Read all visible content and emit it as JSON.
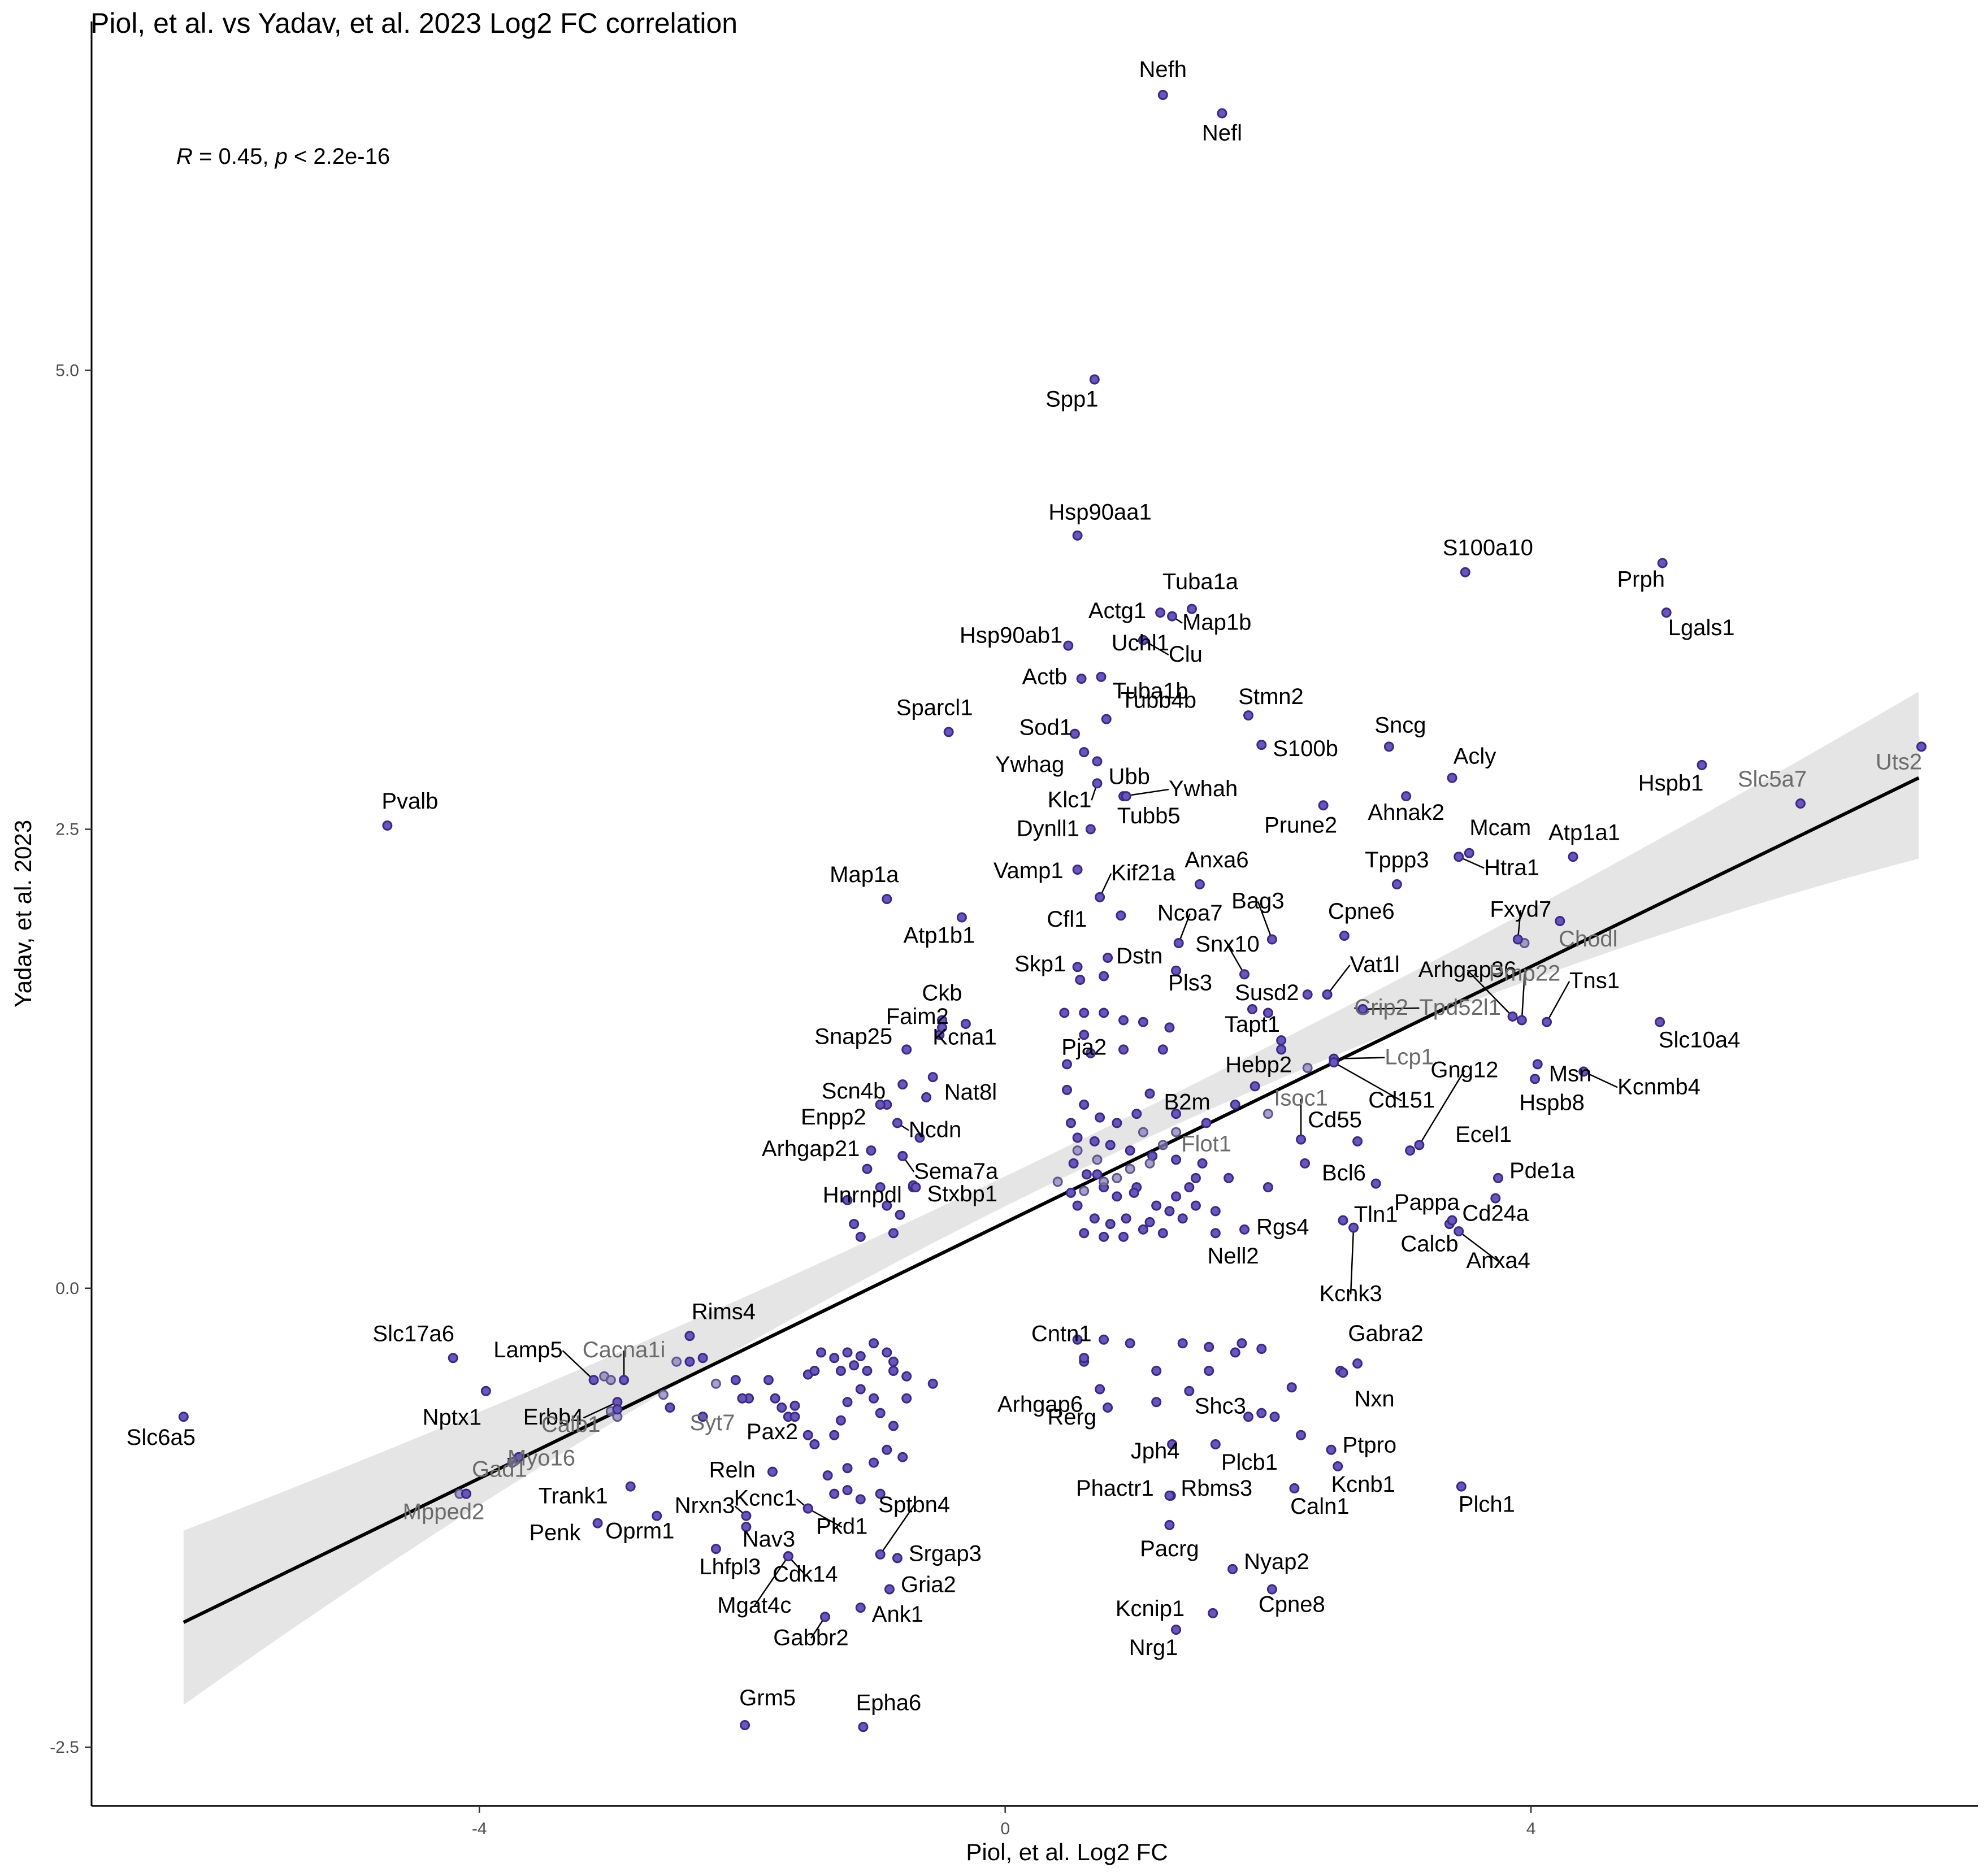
{
  "chart_data": {
    "type": "scatter",
    "title": "Piol, et al. vs Yadav, et al. 2023 Log2 FC correlation",
    "xlabel": "Piol, et al. Log2 FC",
    "ylabel": "Yadav, et al. 2023",
    "xlim": [
      -6.95,
      7.4
    ],
    "ylim": [
      -2.82,
      6.9
    ],
    "x_ticks": [
      -4,
      0,
      4
    ],
    "x_tick_labels": [
      "-4",
      "0",
      "4"
    ],
    "y_ticks": [
      -2.5,
      0,
      2.5,
      5
    ],
    "y_tick_labels": [
      "-2.5",
      "0.0",
      "2.5",
      "5.0"
    ],
    "stat_annotation": {
      "r_symbol": "R",
      "r_text": " = 0.45, ",
      "p_symbol": "p",
      "p_text": " < 2.2e-16"
    },
    "colors": {
      "point_fill": "#6a55b8",
      "point_stroke": "#3a2a88",
      "regression_line": "#000000",
      "confidence_band": "#bebebe"
    },
    "regression": {
      "x": [
        -6.25,
        6.95
      ],
      "y": [
        -1.82,
        2.78
      ],
      "band_upper": [
        -1.32,
        3.25
      ],
      "band_lower": [
        -2.27,
        2.34
      ],
      "band_mid_upper": 0.73,
      "band_mid_lower": 0.57
    },
    "labeled_points": [
      {
        "name": "Nefh",
        "x": 1.2,
        "y": 6.5
      },
      {
        "name": "Nefl",
        "x": 1.65,
        "y": 6.4
      },
      {
        "name": "Spp1",
        "x": 0.68,
        "y": 4.95
      },
      {
        "name": "Hsp90aa1",
        "x": 0.55,
        "y": 4.1
      },
      {
        "name": "S100a10",
        "x": 3.5,
        "y": 3.9
      },
      {
        "name": "Prph",
        "x": 5.0,
        "y": 3.95
      },
      {
        "name": "Tuba1a",
        "x": 1.42,
        "y": 3.7
      },
      {
        "name": "Lgals1",
        "x": 5.03,
        "y": 3.68
      },
      {
        "name": "Actg1",
        "x": 1.18,
        "y": 3.68
      },
      {
        "name": "Map1b",
        "x": 1.27,
        "y": 3.66
      },
      {
        "name": "Hsp90ab1",
        "x": 0.48,
        "y": 3.5
      },
      {
        "name": "Uchl1",
        "x": 1.05,
        "y": 3.53
      },
      {
        "name": "Clu",
        "x": 1.05,
        "y": 3.53
      },
      {
        "name": "Actb",
        "x": 0.58,
        "y": 3.32
      },
      {
        "name": "Tuba1b",
        "x": 0.73,
        "y": 3.33
      },
      {
        "name": "Stmn2",
        "x": 1.85,
        "y": 3.12
      },
      {
        "name": "Sparcl1",
        "x": -0.43,
        "y": 3.03
      },
      {
        "name": "Sod1",
        "x": 0.53,
        "y": 3.02
      },
      {
        "name": "Tubb4b",
        "x": 0.77,
        "y": 3.1
      },
      {
        "name": "S100b",
        "x": 1.95,
        "y": 2.96
      },
      {
        "name": "Sncg",
        "x": 2.92,
        "y": 2.95
      },
      {
        "name": "Uts2",
        "x": 6.97,
        "y": 2.95
      },
      {
        "name": "Ywhag",
        "x": 0.6,
        "y": 2.92
      },
      {
        "name": "Ubb",
        "x": 0.7,
        "y": 2.87
      },
      {
        "name": "Acly",
        "x": 3.4,
        "y": 2.78
      },
      {
        "name": "Hspb1",
        "x": 5.3,
        "y": 2.85
      },
      {
        "name": "Klc1",
        "x": 0.7,
        "y": 2.75
      },
      {
        "name": "Ywhah",
        "x": 0.9,
        "y": 2.68
      },
      {
        "name": "Slc5a7",
        "x": 6.05,
        "y": 2.64
      },
      {
        "name": "Pvalb",
        "x": -4.7,
        "y": 2.52
      },
      {
        "name": "Tubb5",
        "x": 0.92,
        "y": 2.68
      },
      {
        "name": "Prune2",
        "x": 2.42,
        "y": 2.63
      },
      {
        "name": "Ahnak2",
        "x": 3.05,
        "y": 2.68
      },
      {
        "name": "Dynll1",
        "x": 0.65,
        "y": 2.5
      },
      {
        "name": "Mcam",
        "x": 3.53,
        "y": 2.37
      },
      {
        "name": "Atp1a1",
        "x": 4.32,
        "y": 2.35
      },
      {
        "name": "Tppp3",
        "x": 2.98,
        "y": 2.2
      },
      {
        "name": "Htra1",
        "x": 3.45,
        "y": 2.35
      },
      {
        "name": "Anxa6",
        "x": 1.48,
        "y": 2.2
      },
      {
        "name": "Kif21a",
        "x": 0.72,
        "y": 2.13
      },
      {
        "name": "Vamp1",
        "x": 0.55,
        "y": 2.28
      },
      {
        "name": "Map1a",
        "x": -0.9,
        "y": 2.12
      },
      {
        "name": "Fxyd7",
        "x": 3.9,
        "y": 1.9
      },
      {
        "name": "Cfl1",
        "x": 0.88,
        "y": 2.03
      },
      {
        "name": "Ncoa7",
        "x": 1.32,
        "y": 1.88
      },
      {
        "name": "Bag3",
        "x": 2.03,
        "y": 1.9
      },
      {
        "name": "Atp1b1",
        "x": -0.33,
        "y": 2.02
      },
      {
        "name": "Cpne6",
        "x": 2.58,
        "y": 1.92
      },
      {
        "name": "Arhgap36",
        "x": 3.86,
        "y": 1.48
      },
      {
        "name": "Chodl",
        "x": 4.22,
        "y": 2.0
      },
      {
        "name": "Dstn",
        "x": 0.78,
        "y": 1.8
      },
      {
        "name": "Snx10",
        "x": 1.82,
        "y": 1.71
      },
      {
        "name": "Skp1",
        "x": 0.57,
        "y": 1.68
      },
      {
        "name": "Pmp22",
        "x": 3.93,
        "y": 1.46
      },
      {
        "name": "Susd2",
        "x": 2.45,
        "y": 1.6
      },
      {
        "name": "Vat1l",
        "x": 2.45,
        "y": 1.6
      },
      {
        "name": "Pls3",
        "x": 1.3,
        "y": 1.73
      },
      {
        "name": "Ckb",
        "x": -0.48,
        "y": 1.46
      },
      {
        "name": "Faim2",
        "x": -0.3,
        "y": 1.44
      },
      {
        "name": "Tapt1",
        "x": 1.88,
        "y": 1.52
      },
      {
        "name": "Crip2",
        "x": 2.72,
        "y": 1.52
      },
      {
        "name": "Tpd52l1",
        "x": 2.72,
        "y": 1.52
      },
      {
        "name": "Tns1",
        "x": 4.12,
        "y": 1.45
      },
      {
        "name": "Slc10a4",
        "x": 4.98,
        "y": 1.45
      },
      {
        "name": "Snap25",
        "x": -0.75,
        "y": 1.3
      },
      {
        "name": "Kcna1",
        "x": -0.48,
        "y": 1.42
      },
      {
        "name": "Pja2",
        "x": 0.6,
        "y": 1.38
      },
      {
        "name": "Hebp2",
        "x": 2.1,
        "y": 1.3
      },
      {
        "name": "Lcp1",
        "x": 2.5,
        "y": 1.25
      },
      {
        "name": "Gng12",
        "x": 3.15,
        "y": 0.78
      },
      {
        "name": "Msn",
        "x": 4.05,
        "y": 1.22
      },
      {
        "name": "Scn4b",
        "x": -0.78,
        "y": 1.11
      },
      {
        "name": "Nat8l",
        "x": -0.55,
        "y": 1.15
      },
      {
        "name": "Cd151",
        "x": 2.5,
        "y": 1.23
      },
      {
        "name": "B2m",
        "x": 1.1,
        "y": 1.06
      },
      {
        "name": "Kcnmb4",
        "x": 4.4,
        "y": 1.18
      },
      {
        "name": "Hspb8",
        "x": 4.03,
        "y": 1.14
      },
      {
        "name": "Enpp2",
        "x": -0.95,
        "y": 1.0
      },
      {
        "name": "Ncdn",
        "x": -0.82,
        "y": 0.9
      },
      {
        "name": "Isoc1",
        "x": 2.25,
        "y": 0.81
      },
      {
        "name": "Cd55",
        "x": 2.68,
        "y": 0.8
      },
      {
        "name": "Ecel1",
        "x": 3.08,
        "y": 0.75
      },
      {
        "name": "Flot1",
        "x": 1.53,
        "y": 0.9
      },
      {
        "name": "Arhgap21",
        "x": -1.02,
        "y": 0.75
      },
      {
        "name": "Sema7a",
        "x": -0.78,
        "y": 0.72
      },
      {
        "name": "Bcl6",
        "x": 2.28,
        "y": 0.68
      },
      {
        "name": "Tln1",
        "x": 2.82,
        "y": 0.57
      },
      {
        "name": "Pde1a",
        "x": 3.75,
        "y": 0.6
      },
      {
        "name": "Hnrnpdl",
        "x": -0.7,
        "y": 0.56
      },
      {
        "name": "Stxbp1",
        "x": -0.68,
        "y": 0.55
      },
      {
        "name": "Pappa",
        "x": 3.38,
        "y": 0.35
      },
      {
        "name": "Cd24a",
        "x": 3.73,
        "y": 0.49
      },
      {
        "name": "Rgs4",
        "x": 2.57,
        "y": 0.37
      },
      {
        "name": "Calcb",
        "x": 3.4,
        "y": 0.37
      },
      {
        "name": "Nell2",
        "x": 1.82,
        "y": 0.32
      },
      {
        "name": "Anxa4",
        "x": 3.45,
        "y": 0.31
      },
      {
        "name": "Kcnk3",
        "x": 2.65,
        "y": 0.33
      },
      {
        "name": "Rims4",
        "x": -2.4,
        "y": -0.26
      },
      {
        "name": "Slc17a6",
        "x": -4.2,
        "y": -0.38
      },
      {
        "name": "Cntn1",
        "x": 0.6,
        "y": -0.38
      },
      {
        "name": "Gabra2",
        "x": 2.68,
        "y": -0.41
      },
      {
        "name": "Lamp5",
        "x": -3.13,
        "y": -0.5
      },
      {
        "name": "Cacna1i",
        "x": -2.9,
        "y": -0.5
      },
      {
        "name": "Erbb4",
        "x": -2.95,
        "y": -0.62
      },
      {
        "name": "Syt7",
        "x": -2.55,
        "y": -0.65
      },
      {
        "name": "Arhgap6",
        "x": 0.72,
        "y": -0.55
      },
      {
        "name": "Shc3",
        "x": 1.4,
        "y": -0.56
      },
      {
        "name": "Nxn",
        "x": 2.57,
        "y": -0.46
      },
      {
        "name": "Slc6a5",
        "x": -6.25,
        "y": -0.7
      },
      {
        "name": "Nptx1",
        "x": -3.95,
        "y": -0.56
      },
      {
        "name": "Calb1",
        "x": -2.95,
        "y": -0.66
      },
      {
        "name": "Rerg",
        "x": 0.78,
        "y": -0.65
      },
      {
        "name": "Ptpro",
        "x": 2.48,
        "y": -0.88
      },
      {
        "name": "Pax2",
        "x": -1.6,
        "y": -0.7
      },
      {
        "name": "Myo16",
        "x": -3.7,
        "y": -0.92
      },
      {
        "name": "Jph4",
        "x": 1.27,
        "y": -0.85
      },
      {
        "name": "Plcb1",
        "x": 1.6,
        "y": -0.85
      },
      {
        "name": "Gad1",
        "x": -4.1,
        "y": -1.12
      },
      {
        "name": "Reln",
        "x": -1.77,
        "y": -1.0
      },
      {
        "name": "Kcnb1",
        "x": 2.53,
        "y": -0.97
      },
      {
        "name": "Kcnc1",
        "x": -1.5,
        "y": -1.2
      },
      {
        "name": "Phactr1",
        "x": 1.26,
        "y": -1.13
      },
      {
        "name": "Rbms3",
        "x": 1.25,
        "y": -1.13
      },
      {
        "name": "Trank1",
        "x": -2.85,
        "y": -1.08
      },
      {
        "name": "Sptbn4",
        "x": -0.95,
        "y": -1.45
      },
      {
        "name": "Plch1",
        "x": 3.47,
        "y": -1.08
      },
      {
        "name": "Caln1",
        "x": 2.2,
        "y": -1.09
      },
      {
        "name": "Mpped2",
        "x": -4.1,
        "y": -1.12
      },
      {
        "name": "Nrxn3",
        "x": -1.97,
        "y": -1.24
      },
      {
        "name": "Nav3",
        "x": -1.97,
        "y": -1.3
      },
      {
        "name": "Pkd1",
        "x": -1.5,
        "y": -1.2
      },
      {
        "name": "Penk",
        "x": -3.1,
        "y": -1.28
      },
      {
        "name": "Oprm1",
        "x": -2.65,
        "y": -1.24
      },
      {
        "name": "Srgap3",
        "x": -0.82,
        "y": -1.47
      },
      {
        "name": "Pacrg",
        "x": 1.25,
        "y": -1.29
      },
      {
        "name": "Lhfpl3",
        "x": -2.2,
        "y": -1.42
      },
      {
        "name": "Cdk14",
        "x": -1.65,
        "y": -1.46
      },
      {
        "name": "Gria2",
        "x": -0.88,
        "y": -1.64
      },
      {
        "name": "Nyap2",
        "x": 1.73,
        "y": -1.53
      },
      {
        "name": "Mgat4c",
        "x": -1.65,
        "y": -1.46
      },
      {
        "name": "Kcnip1",
        "x": 1.58,
        "y": -1.77
      },
      {
        "name": "Cpne8",
        "x": 2.03,
        "y": -1.64
      },
      {
        "name": "Ank1",
        "x": -1.1,
        "y": -1.74
      },
      {
        "name": "Gabbr2",
        "x": -1.37,
        "y": -1.79
      },
      {
        "name": "Nrg1",
        "x": 1.3,
        "y": -1.86
      },
      {
        "name": "Grm5",
        "x": -1.98,
        "y": -2.38
      },
      {
        "name": "Epha6",
        "x": -1.08,
        "y": -2.39
      }
    ],
    "unlabeled_points": [
      [
        -0.5,
        1.38
      ],
      [
        -0.9,
        1.0
      ],
      [
        -0.95,
        0.55
      ],
      [
        -0.9,
        0.45
      ],
      [
        -0.85,
        0.3
      ],
      [
        -1.15,
        0.35
      ],
      [
        -1.1,
        0.28
      ],
      [
        -1.2,
        0.48
      ],
      [
        -1.05,
        0.65
      ],
      [
        -0.65,
        0.82
      ],
      [
        -0.6,
        1.04
      ],
      [
        -0.7,
        0.55
      ],
      [
        -0.8,
        0.4
      ],
      [
        0.45,
        1.5
      ],
      [
        0.6,
        1.5
      ],
      [
        0.75,
        1.5
      ],
      [
        0.9,
        1.46
      ],
      [
        1.05,
        1.45
      ],
      [
        1.25,
        1.42
      ],
      [
        0.65,
        1.28
      ],
      [
        0.9,
        1.3
      ],
      [
        1.2,
        1.3
      ],
      [
        0.47,
        1.22
      ],
      [
        0.47,
        1.08
      ],
      [
        0.6,
        1.0
      ],
      [
        0.72,
        0.93
      ],
      [
        0.85,
        0.9
      ],
      [
        1.0,
        0.95
      ],
      [
        1.3,
        0.95
      ],
      [
        0.55,
        0.82
      ],
      [
        0.68,
        0.8
      ],
      [
        0.8,
        0.78
      ],
      [
        0.95,
        0.75
      ],
      [
        1.12,
        0.72
      ],
      [
        1.3,
        0.7
      ],
      [
        1.5,
        0.68
      ],
      [
        1.7,
        0.6
      ],
      [
        0.52,
        0.68
      ],
      [
        0.62,
        0.62
      ],
      [
        0.75,
        0.55
      ],
      [
        0.85,
        0.5
      ],
      [
        1.0,
        0.55
      ],
      [
        1.15,
        0.45
      ],
      [
        1.3,
        0.5
      ],
      [
        1.45,
        0.45
      ],
      [
        1.6,
        0.42
      ],
      [
        0.55,
        0.45
      ],
      [
        0.68,
        0.38
      ],
      [
        0.8,
        0.35
      ],
      [
        0.92,
        0.38
      ],
      [
        1.05,
        0.32
      ],
      [
        1.2,
        0.3
      ],
      [
        1.35,
        0.38
      ],
      [
        1.6,
        0.3
      ],
      [
        0.6,
        0.3
      ],
      [
        0.75,
        0.28
      ],
      [
        0.9,
        0.28
      ],
      [
        1.1,
        0.36
      ],
      [
        1.25,
        0.42
      ],
      [
        0.5,
        0.52
      ],
      [
        0.7,
        0.62
      ],
      [
        1.45,
        0.6
      ],
      [
        1.75,
        1.0
      ],
      [
        1.9,
        1.1
      ],
      [
        2.0,
        1.5
      ],
      [
        2.1,
        1.35
      ],
      [
        2.3,
        1.6
      ],
      [
        0.55,
        1.75
      ],
      [
        0.75,
        1.7
      ],
      [
        0.5,
        0.9
      ],
      [
        0.98,
        0.52
      ],
      [
        1.4,
        0.55
      ],
      [
        2.0,
        0.55
      ],
      [
        -2.4,
        -0.4
      ],
      [
        -2.3,
        -0.38
      ],
      [
        -2.05,
        -0.5
      ],
      [
        -1.95,
        -0.6
      ],
      [
        -1.8,
        -0.5
      ],
      [
        -1.75,
        -0.6
      ],
      [
        -1.7,
        -0.65
      ],
      [
        -1.65,
        -0.7
      ],
      [
        -1.6,
        -0.64
      ],
      [
        -1.5,
        -0.47
      ],
      [
        -1.45,
        -0.45
      ],
      [
        -1.4,
        -0.35
      ],
      [
        -1.3,
        -0.38
      ],
      [
        -1.25,
        -0.45
      ],
      [
        -1.2,
        -0.35
      ],
      [
        -1.15,
        -0.42
      ],
      [
        -1.1,
        -0.37
      ],
      [
        -1.05,
        -0.45
      ],
      [
        -0.9,
        -0.35
      ],
      [
        -0.85,
        -0.4
      ],
      [
        -0.75,
        -0.48
      ],
      [
        -0.55,
        -0.52
      ],
      [
        -1.3,
        -0.8
      ],
      [
        -1.25,
        -0.72
      ],
      [
        -1.2,
        -0.62
      ],
      [
        -1.1,
        -0.55
      ],
      [
        -1.0,
        -0.6
      ],
      [
        -0.95,
        -0.68
      ],
      [
        -0.85,
        -0.75
      ],
      [
        -0.75,
        -0.6
      ],
      [
        -1.35,
        -1.02
      ],
      [
        -1.2,
        -0.98
      ],
      [
        -1.0,
        -0.95
      ],
      [
        -0.9,
        -0.88
      ],
      [
        -0.78,
        -0.92
      ],
      [
        -1.3,
        -1.12
      ],
      [
        -1.2,
        -1.1
      ],
      [
        -1.1,
        -1.15
      ],
      [
        -0.95,
        -1.12
      ],
      [
        -0.85,
        -0.45
      ],
      [
        -1.45,
        -0.85
      ],
      [
        -2.3,
        -0.7
      ],
      [
        -2.0,
        -0.6
      ],
      [
        -1.5,
        -0.8
      ],
      [
        -1.0,
        -0.3
      ],
      [
        0.55,
        -0.28
      ],
      [
        0.75,
        -0.28
      ],
      [
        0.95,
        -0.3
      ],
      [
        1.35,
        -0.3
      ],
      [
        1.55,
        -0.32
      ],
      [
        1.8,
        -0.3
      ],
      [
        1.95,
        -0.33
      ],
      [
        1.75,
        -0.35
      ],
      [
        0.6,
        -0.4
      ],
      [
        1.15,
        -0.45
      ],
      [
        1.55,
        -0.45
      ],
      [
        2.18,
        -0.54
      ],
      [
        2.55,
        -0.45
      ],
      [
        1.15,
        -0.62
      ],
      [
        1.85,
        -0.7
      ],
      [
        1.95,
        -0.68
      ],
      [
        2.05,
        -0.7
      ],
      [
        2.25,
        -0.8
      ]
    ],
    "gray_points": [
      [
        -3.05,
        -0.48
      ],
      [
        -3.0,
        -0.5
      ],
      [
        -2.2,
        -0.52
      ],
      [
        -2.6,
        -0.58
      ],
      [
        -2.5,
        -0.4
      ],
      [
        -3.0,
        -0.67
      ],
      [
        -2.95,
        -0.7
      ],
      [
        -3.75,
        -0.95
      ],
      [
        -4.15,
        -1.12
      ],
      [
        0.55,
        0.75
      ],
      [
        0.7,
        0.7
      ],
      [
        0.85,
        0.6
      ],
      [
        0.4,
        0.58
      ],
      [
        0.6,
        0.53
      ],
      [
        0.75,
        0.58
      ],
      [
        0.95,
        0.65
      ],
      [
        1.1,
        0.68
      ],
      [
        1.2,
        0.78
      ],
      [
        1.05,
        0.85
      ],
      [
        1.3,
        0.85
      ],
      [
        2.0,
        0.95
      ],
      [
        2.3,
        1.2
      ],
      [
        3.95,
        1.88
      ]
    ]
  }
}
